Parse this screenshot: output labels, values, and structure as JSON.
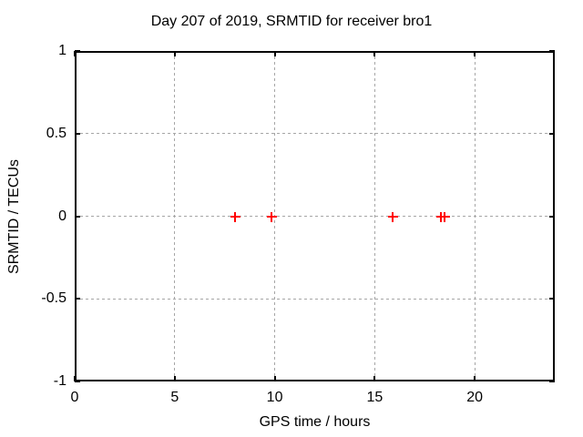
{
  "chart_data": {
    "type": "scatter",
    "title": "Day 207 of 2019, SRMTID for receiver bro1",
    "xlabel": "GPS time / hours",
    "ylabel": "SRMTID / TECUs",
    "xlim": [
      0,
      24
    ],
    "ylim": [
      -1,
      1
    ],
    "grid": true,
    "legend": "none",
    "xticks": [
      {
        "value": 0,
        "label": "0"
      },
      {
        "value": 5,
        "label": "5"
      },
      {
        "value": 10,
        "label": "10"
      },
      {
        "value": 15,
        "label": "15"
      },
      {
        "value": 20,
        "label": "20"
      }
    ],
    "yticks": [
      {
        "value": -1,
        "label": "-1"
      },
      {
        "value": -0.5,
        "label": "-0.5"
      },
      {
        "value": 0,
        "label": "0"
      },
      {
        "value": 0.5,
        "label": "0.5"
      },
      {
        "value": 1,
        "label": "1"
      }
    ],
    "series": [
      {
        "name": "SRMTID",
        "marker": "plus",
        "color": "#ff0000",
        "points": [
          {
            "x": 8.0,
            "y": 0
          },
          {
            "x": 9.85,
            "y": 0
          },
          {
            "x": 15.9,
            "y": 0
          },
          {
            "x": 18.3,
            "y": 0
          },
          {
            "x": 18.5,
            "y": 0
          }
        ]
      }
    ],
    "colors": {
      "background": "#ffffff",
      "grid": "#a6a6a6",
      "axis": "#000000",
      "text": "#000000",
      "marker": "#ff0000"
    }
  }
}
